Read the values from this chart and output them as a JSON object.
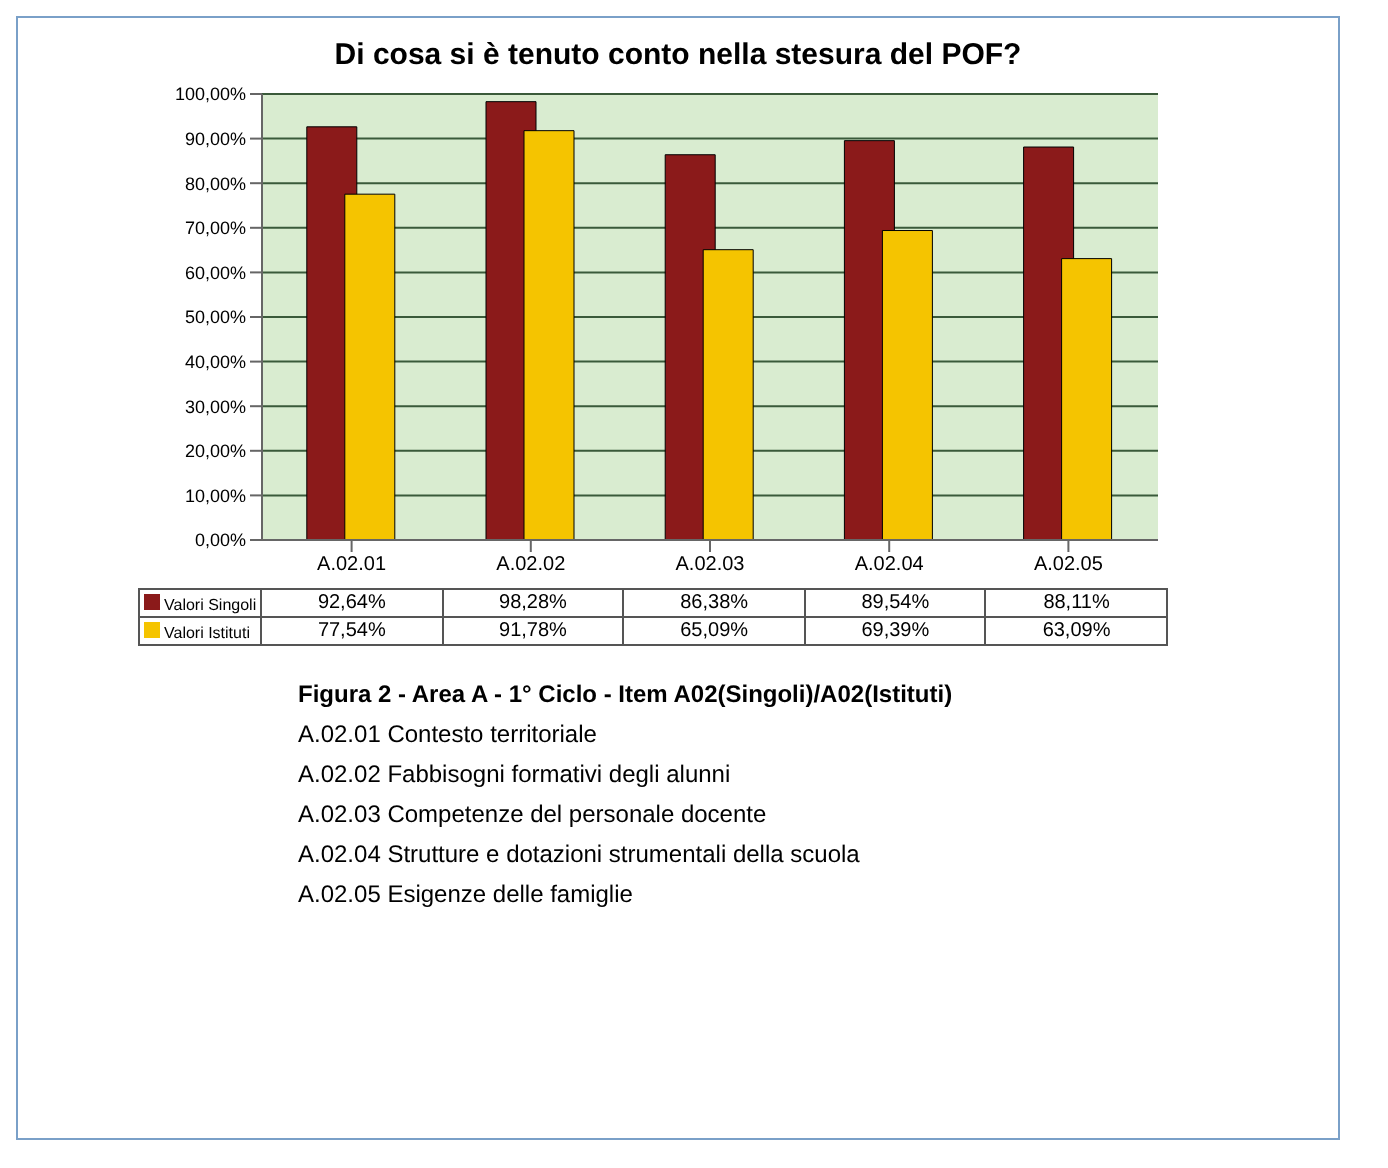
{
  "chart_data": {
    "type": "bar",
    "title": "Di cosa si è tenuto conto nella stesura del POF?",
    "categories": [
      "A.02.01",
      "A.02.02",
      "A.02.03",
      "A.02.04",
      "A.02.05"
    ],
    "series": [
      {
        "name": "Valori Singoli",
        "color": "#8b1a1a",
        "values": [
          92.64,
          98.28,
          86.38,
          89.54,
          88.11
        ],
        "value_labels": [
          "92,64%",
          "98,28%",
          "86,38%",
          "89,54%",
          "88,11%"
        ]
      },
      {
        "name": "Valori Istituti",
        "color": "#f5c400",
        "values": [
          77.54,
          91.78,
          65.09,
          69.39,
          63.09
        ],
        "value_labels": [
          "77,54%",
          "91,78%",
          "65,09%",
          "69,39%",
          "63,09%"
        ]
      }
    ],
    "ylim": [
      0,
      100
    ],
    "yticks": [
      {
        "value": 0,
        "label": "0,00%"
      },
      {
        "value": 10,
        "label": "10,00%"
      },
      {
        "value": 20,
        "label": "20,00%"
      },
      {
        "value": 30,
        "label": "30,00%"
      },
      {
        "value": 40,
        "label": "40,00%"
      },
      {
        "value": 50,
        "label": "50,00%"
      },
      {
        "value": 60,
        "label": "60,00%"
      },
      {
        "value": 70,
        "label": "70,00%"
      },
      {
        "value": 80,
        "label": "80,00%"
      },
      {
        "value": 90,
        "label": "90,00%"
      },
      {
        "value": 100,
        "label": "100,00%"
      }
    ],
    "grid": "y",
    "legend": "bottom",
    "annotations": [
      "Figura 2 - Area A - 1° Ciclo - Item A02(Singoli)/A02(Istituti)",
      "A.02.01 Contesto territoriale",
      "A.02.02 Fabbisogni formativi degli alunni",
      "A.02.03 Competenze del personale docente",
      "A.02.04 Strutture e dotazioni strumentali della scuola",
      "A.02.05 Esigenze delle famiglie"
    ]
  }
}
